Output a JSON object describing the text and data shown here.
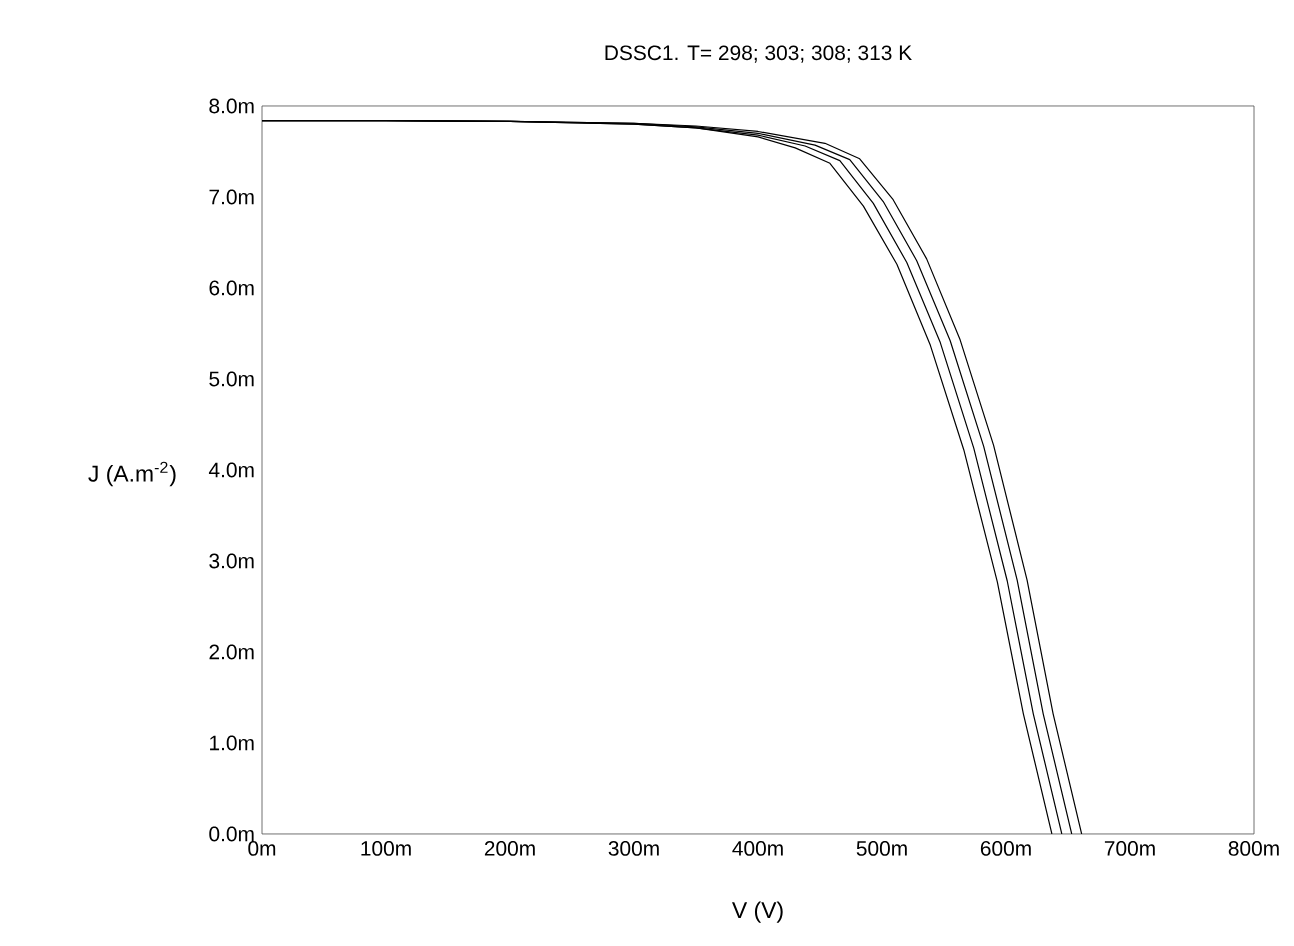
{
  "chart_data": {
    "type": "line",
    "title": "DSSC1.  T= 298; 303; 308; 313 K",
    "xlabel": "V (V)",
    "ylabel": "J (A.m$^{-2}$)",
    "series": [
      {
        "color": "#000000",
        "x": [
          0,
          100,
          200,
          300,
          350,
          400,
          430,
          458,
          485,
          512,
          539,
          566,
          593,
          614,
          637
        ],
        "values": [
          7.84,
          7.84,
          7.83,
          7.8,
          7.76,
          7.66,
          7.54,
          7.37,
          6.9,
          6.26,
          5.37,
          4.22,
          2.77,
          1.32,
          0
        ]
      },
      {
        "color": "#000000",
        "x": [
          0,
          100,
          200,
          300,
          350,
          400,
          438,
          466,
          493,
          520,
          547,
          574,
          601,
          622,
          645
        ],
        "values": [
          7.84,
          7.84,
          7.83,
          7.8,
          7.76,
          7.68,
          7.56,
          7.4,
          6.93,
          6.28,
          5.4,
          4.24,
          2.78,
          1.32,
          0
        ]
      },
      {
        "color": "#000000",
        "x": [
          0,
          100,
          200,
          300,
          350,
          400,
          446,
          474,
          501,
          528,
          555,
          582,
          609,
          630,
          653
        ],
        "values": [
          7.84,
          7.84,
          7.83,
          7.81,
          7.77,
          7.7,
          7.57,
          7.41,
          6.95,
          6.3,
          5.42,
          4.26,
          2.79,
          1.32,
          0
        ]
      },
      {
        "color": "#000000",
        "x": [
          0,
          100,
          200,
          300,
          350,
          400,
          454,
          482,
          509,
          536,
          563,
          590,
          617,
          638,
          661
        ],
        "values": [
          7.84,
          7.84,
          7.83,
          7.81,
          7.78,
          7.72,
          7.59,
          7.42,
          6.97,
          6.32,
          5.43,
          4.27,
          2.79,
          1.32,
          0
        ]
      }
    ],
    "xlim": [
      0,
      800
    ],
    "ylim": [
      0,
      8
    ],
    "xticks": [
      {
        "value": 0,
        "label": "0m"
      },
      {
        "value": 100,
        "label": "100m"
      },
      {
        "value": 200,
        "label": "200m"
      },
      {
        "value": 300,
        "label": "300m"
      },
      {
        "value": 400,
        "label": "400m"
      },
      {
        "value": 500,
        "label": "500m"
      },
      {
        "value": 600,
        "label": "600m"
      },
      {
        "value": 700,
        "label": "700m"
      },
      {
        "value": 800,
        "label": "800m"
      }
    ],
    "yticks": [
      {
        "value": 0,
        "label": "0.0m"
      },
      {
        "value": 1,
        "label": "1.0m"
      },
      {
        "value": 2,
        "label": "2.0m"
      },
      {
        "value": 3,
        "label": "3.0m"
      },
      {
        "value": 4,
        "label": "4.0m"
      },
      {
        "value": 5,
        "label": "5.0m"
      },
      {
        "value": 6,
        "label": "6.0m"
      },
      {
        "value": 7,
        "label": "7.0m"
      },
      {
        "value": 8,
        "label": "8.0m"
      }
    ],
    "marker": "none",
    "line_style": "solid"
  }
}
